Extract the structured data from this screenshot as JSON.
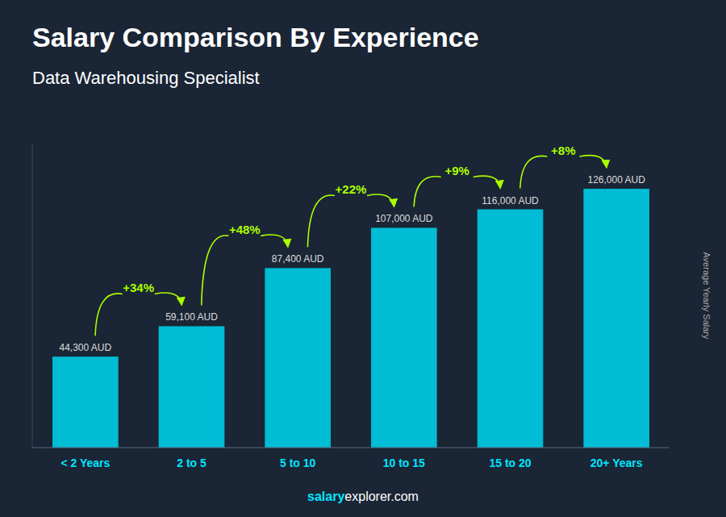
{
  "chart_data": {
    "type": "bar",
    "title": "Salary Comparison By Experience",
    "subtitle": "Data Warehousing Specialist",
    "categories": [
      "< 2 Years",
      "2 to 5",
      "5 to 10",
      "10 to 15",
      "15 to 20",
      "20+ Years"
    ],
    "values": [
      44300,
      59100,
      87400,
      107000,
      116000,
      126000
    ],
    "value_labels": [
      "44,300 AUD",
      "59,100 AUD",
      "87,400 AUD",
      "107,000 AUD",
      "116,000 AUD",
      "126,000 AUD"
    ],
    "data_labels": true,
    "annotations": [
      "+34%",
      "+48%",
      "+22%",
      "+9%",
      "+8%"
    ],
    "ylabel": "Average Yearly Salary",
    "footer": [
      "salary",
      "explorer.com"
    ],
    "color": "#00bcd4",
    "ylim": [
      0,
      148000
    ],
    "tick_labels": "x"
  }
}
